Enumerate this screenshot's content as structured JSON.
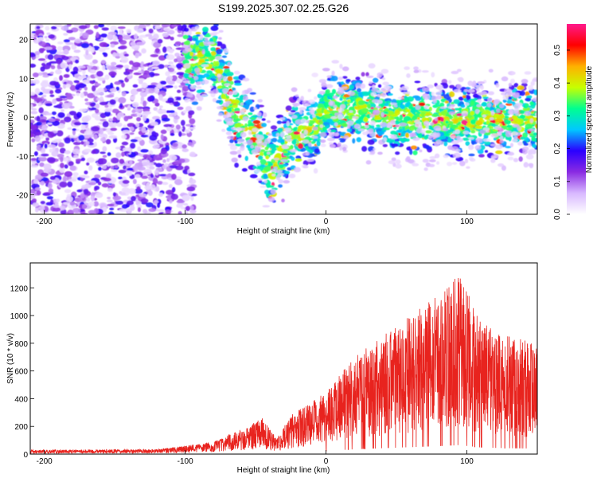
{
  "title": "S199.2025.307.02.25.G26",
  "chart_data": [
    {
      "type": "heatmap",
      "name": "spectrogram",
      "xlabel": "Height of straight line (km)",
      "ylabel": "Frequency (Hz)",
      "xlim": [
        -210,
        150
      ],
      "ylim": [
        -25,
        24
      ],
      "xticks": [
        -200,
        -100,
        0,
        100
      ],
      "yticks": [
        -20,
        -10,
        0,
        10,
        20
      ],
      "colorbar": {
        "label": "Normalized spectral amplitude",
        "range": [
          0,
          0.58
        ],
        "ticks": [
          0.0,
          0.1,
          0.2,
          0.3,
          0.4,
          0.5
        ],
        "colors": [
          "#ffffff",
          "#d8b8ff",
          "#8a2be2",
          "#2a00ff",
          "#00c8ff",
          "#00ff90",
          "#c8ff00",
          "#ffb000",
          "#ff0000",
          "#ff1a8c"
        ]
      },
      "features": {
        "noise_region_x": [
          -210,
          -100
        ],
        "dispersion_curve": [
          {
            "x": -80,
            "y": 15
          },
          {
            "x": -75,
            "y": 10
          },
          {
            "x": -65,
            "y": 2
          },
          {
            "x": -55,
            "y": -3
          },
          {
            "x": -45,
            "y": -8
          },
          {
            "x": -40,
            "y": -15
          },
          {
            "x": -35,
            "y": -12
          },
          {
            "x": -25,
            "y": -5
          },
          {
            "x": -10,
            "y": -3
          },
          {
            "x": 0,
            "y": 2
          },
          {
            "x": 20,
            "y": 2
          },
          {
            "x": 50,
            "y": 0
          },
          {
            "x": 100,
            "y": -1
          },
          {
            "x": 150,
            "y": -1
          }
        ]
      }
    },
    {
      "type": "line",
      "name": "snr",
      "xlabel": "Height of straight line (km)",
      "ylabel": "SNR (10 * v/v)",
      "xlim": [
        -210,
        150
      ],
      "ylim": [
        0,
        1380
      ],
      "xticks": [
        -200,
        -100,
        0,
        100
      ],
      "yticks": [
        0,
        200,
        400,
        600,
        800,
        1000,
        1200
      ],
      "line_color": "#e8231e",
      "envelope": [
        {
          "x": -210,
          "y": 30
        },
        {
          "x": -120,
          "y": 35
        },
        {
          "x": -100,
          "y": 60
        },
        {
          "x": -80,
          "y": 90
        },
        {
          "x": -60,
          "y": 180
        },
        {
          "x": -45,
          "y": 260
        },
        {
          "x": -35,
          "y": 110
        },
        {
          "x": -25,
          "y": 280
        },
        {
          "x": -10,
          "y": 380
        },
        {
          "x": 0,
          "y": 450
        },
        {
          "x": 20,
          "y": 700
        },
        {
          "x": 40,
          "y": 850
        },
        {
          "x": 60,
          "y": 1000
        },
        {
          "x": 80,
          "y": 1150
        },
        {
          "x": 95,
          "y": 1300
        },
        {
          "x": 110,
          "y": 950
        },
        {
          "x": 130,
          "y": 850
        },
        {
          "x": 150,
          "y": 800
        }
      ]
    }
  ]
}
